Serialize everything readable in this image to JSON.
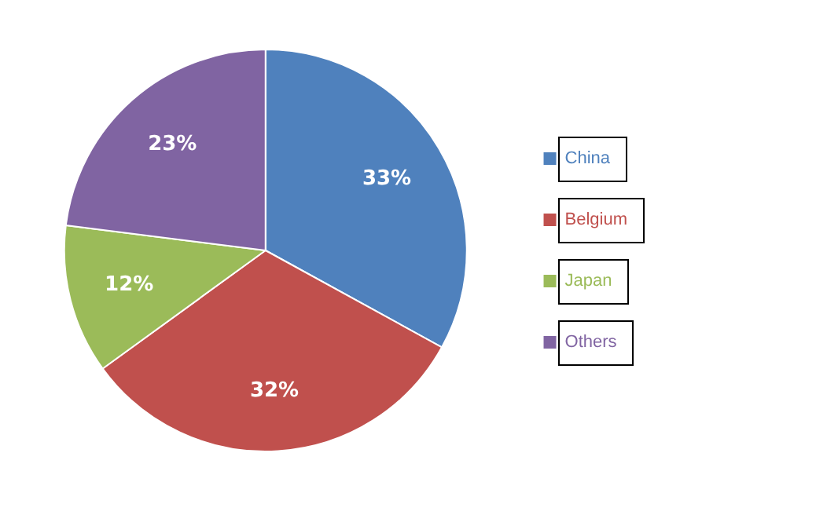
{
  "chart_data": {
    "type": "pie",
    "categories": [
      "China",
      "Belgium",
      "Japan",
      "Others"
    ],
    "values": [
      33,
      32,
      12,
      23
    ],
    "value_labels": [
      "33%",
      "32%",
      "12%",
      "23%"
    ],
    "colors": [
      "#4f81bd",
      "#c0504d",
      "#9bbb59",
      "#8064a2"
    ],
    "legend": "right"
  }
}
